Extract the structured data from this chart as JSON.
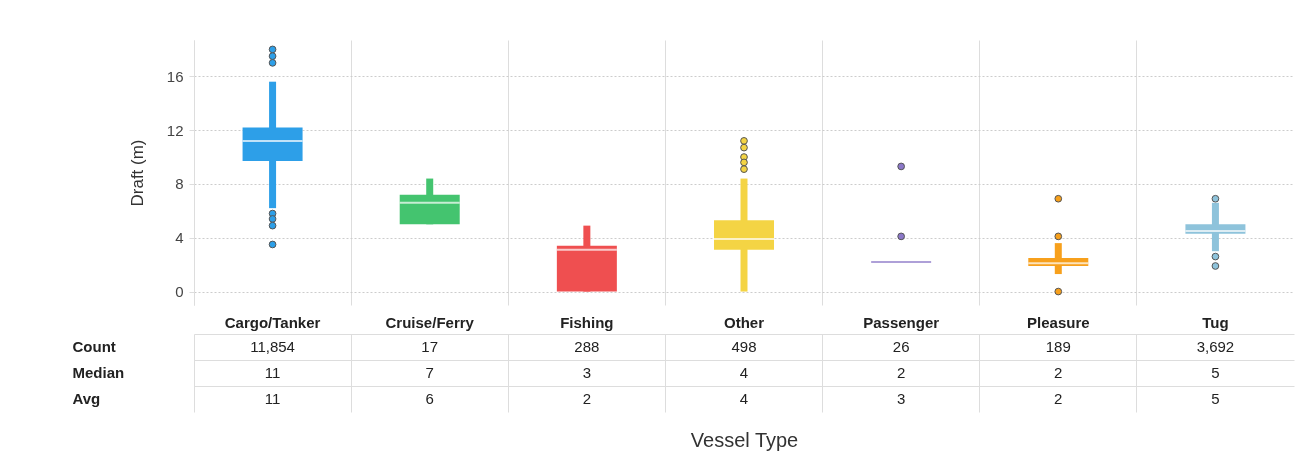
{
  "chart_data": {
    "type": "box",
    "xlabel": "Vessel Type",
    "ylabel": "Draft (m)",
    "categories": [
      "Cargo/Tanker",
      "Cruise/Ferry",
      "Fishing",
      "Other",
      "Passenger",
      "Pleasure",
      "Tug"
    ],
    "colors": [
      "#2d9fe8",
      "#44c46f",
      "#ef4f50",
      "#f4d444",
      "#8b77c8",
      "#f7a01c",
      "#8ec3db"
    ],
    "boxes": [
      {
        "low": 6.2,
        "q1": 9.7,
        "median": 11.2,
        "q3": 12.2,
        "high": 15.6,
        "outliers": [
          18.0,
          17.5,
          17.0,
          5.8,
          5.4,
          4.9,
          3.5
        ]
      },
      {
        "low": 5.0,
        "q1": 5.0,
        "median": 6.6,
        "q3": 7.2,
        "high": 8.4
      },
      {
        "low": 0,
        "q1": 0,
        "median": 3.1,
        "q3": 3.4,
        "high": 4.9
      },
      {
        "low": 0,
        "q1": 3.1,
        "median": 3.9,
        "q3": 5.3,
        "high": 8.4,
        "outliers": [
          11.2,
          10.7,
          10.0,
          9.6,
          9.1
        ]
      },
      {
        "low": 2.2,
        "q1": 2.2,
        "median": 2.2,
        "q3": 2.2,
        "high": 2.2,
        "outliers": [
          9.3,
          4.1
        ]
      },
      {
        "low": 1.3,
        "q1": 1.9,
        "median": 2.1,
        "q3": 2.5,
        "high": 3.6,
        "outliers": [
          6.9,
          4.1,
          0
        ]
      },
      {
        "low": 3.0,
        "q1": 4.3,
        "median": 4.5,
        "q3": 5.0,
        "high": 6.6,
        "outliers": [
          6.9,
          2.6,
          1.9
        ]
      }
    ],
    "ylim": [
      -1,
      18.7
    ],
    "yticks": [
      0,
      4,
      8,
      12,
      16
    ],
    "grid": "y",
    "annotations": [
      "Count",
      "11,854",
      "17",
      "288",
      "498",
      "26",
      "189",
      "3,692",
      "Median",
      "11",
      "7",
      "3",
      "4",
      "2",
      "2",
      "5",
      "Avg",
      "11",
      "6",
      "2",
      "4",
      "3",
      "2",
      "5"
    ]
  }
}
